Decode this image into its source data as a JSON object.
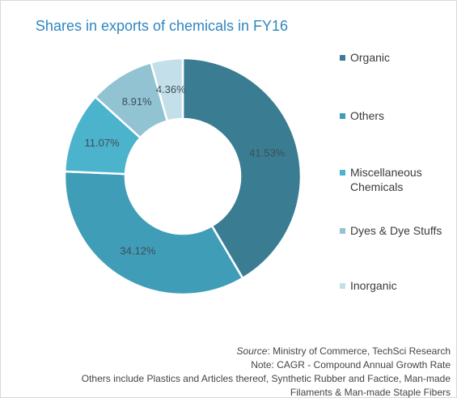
{
  "chart_data": {
    "type": "pie",
    "title": "Shares in exports of chemicals in FY16",
    "legend_position": "right",
    "categories": [
      "Organic",
      "Others",
      "Miscellaneous Chemicals",
      "Dyes & Dye Stuffs",
      "Inorganic"
    ],
    "legend_lines": [
      [
        "Organic"
      ],
      [
        "Others"
      ],
      [
        "Miscellaneous",
        "Chemicals"
      ],
      [
        "Dyes & Dye Stuffs"
      ],
      [
        "Inorganic"
      ]
    ],
    "values": [
      41.53,
      34.12,
      11.07,
      8.91,
      4.36
    ],
    "value_labels": [
      "41.53%",
      "34.12%",
      "11.07%",
      "8.91%",
      "4.36%"
    ],
    "colors": [
      "#3a7d93",
      "#3f9db8",
      "#4cb3cc",
      "#92c3d3",
      "#c3dfe9"
    ],
    "donut": true
  },
  "footer": {
    "source_prefix": "Source",
    "source_text": ": Ministry of Commerce, TechSci Research",
    "note": "Note: CAGR - Compound Annual Growth Rate",
    "others_line1": "Others include Plastics and Articles thereof, Synthetic Rubber and Factice, Man-made",
    "others_line2": "Filaments & Man-made Staple Fibers"
  }
}
